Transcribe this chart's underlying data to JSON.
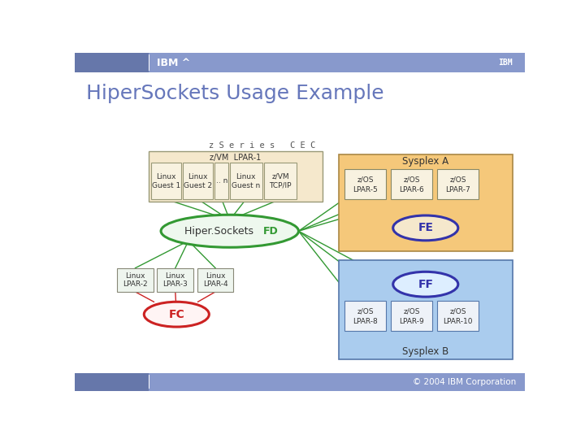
{
  "title": "HiperSockets Usage Example",
  "title_color": "#6677bb",
  "title_fontsize": 18,
  "bg_color": "#ffffff",
  "header_bg": "#8899cc",
  "header_dark": "#6677aa",
  "footer_bg": "#8899cc",
  "footer_dark": "#6677aa",
  "copyright_text": "© 2004 IBM Corporation",
  "ibm_text": "IBM ^",
  "zseries_label": "z S e r i e s   C E C",
  "vm_lpar_label": "z/VM  LPAR-1",
  "vm_box_fill": "#f5e8cc",
  "vm_box_edge": "#999977",
  "inner_box_fill": "#f8f2e0",
  "inner_box_edge": "#999977",
  "green_lpar_fill": "#eef5ee",
  "green_lpar_edge": "#888877",
  "sysplex_a_fill": "#f5c87a",
  "sysplex_a_edge": "#aa8844",
  "sysplex_b_fill": "#aaccee",
  "sysplex_b_edge": "#5577aa",
  "zos_a_fill": "#f8f2e0",
  "zos_a_edge": "#888866",
  "zos_b_fill": "#eef2f8",
  "zos_b_edge": "#5577aa",
  "fe_fill": "#f5e8cc",
  "ff_fill": "#ddeeff",
  "sysplex_a_label": "Sysplex A",
  "sysplex_b_label": "Sysplex B",
  "fe_label": "FE",
  "ff_label": "FF",
  "fc_label": "FC",
  "green_color": "#339933",
  "red_color": "#cc2222",
  "blue_color": "#3333aa",
  "line_green": "#339933",
  "line_red": "#cc2222",
  "text_dark": "#333333",
  "text_mono_color": "#555555"
}
